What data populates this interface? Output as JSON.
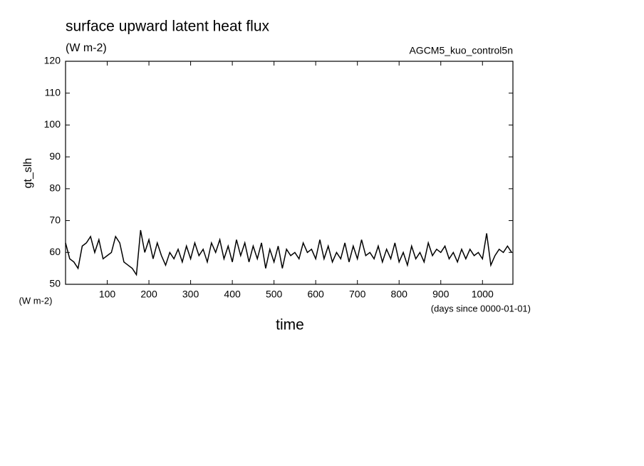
{
  "chart_data": {
    "type": "line",
    "title": "surface upward latent heat flux",
    "subtitle": "(W m-2)",
    "annotation": "AGCM5_kuo_control5n",
    "y_label": "gt_slh",
    "y_unit": "(W m-2)",
    "x_label": "time",
    "x_unit": "(days since 0000-01-01)",
    "x": [
      0,
      10,
      20,
      30,
      40,
      50,
      60,
      70,
      80,
      90,
      100,
      110,
      120,
      130,
      140,
      150,
      160,
      170,
      180,
      190,
      200,
      210,
      220,
      230,
      240,
      250,
      260,
      270,
      280,
      290,
      300,
      310,
      320,
      330,
      340,
      350,
      360,
      370,
      380,
      390,
      400,
      410,
      420,
      430,
      440,
      450,
      460,
      470,
      480,
      490,
      500,
      510,
      520,
      530,
      540,
      550,
      560,
      570,
      580,
      590,
      600,
      610,
      620,
      630,
      640,
      650,
      660,
      670,
      680,
      690,
      700,
      710,
      720,
      730,
      740,
      750,
      760,
      770,
      780,
      790,
      800,
      810,
      820,
      830,
      840,
      850,
      860,
      870,
      880,
      890,
      900,
      910,
      920,
      930,
      940,
      950,
      960,
      970,
      980,
      990,
      1000,
      1010,
      1020,
      1030,
      1040,
      1050,
      1060,
      1070
    ],
    "series": [
      {
        "name": "gt_slh",
        "color": "#000000",
        "values": [
          63,
          58,
          57,
          55,
          62,
          63,
          65,
          60,
          64,
          58,
          59,
          60,
          65,
          63,
          57,
          56,
          55,
          53,
          67,
          60,
          64,
          58,
          63,
          59,
          56,
          60,
          58,
          61,
          57,
          62,
          58,
          63,
          59,
          61,
          57,
          63,
          60,
          64,
          58,
          62,
          57,
          64,
          59,
          63,
          57,
          62,
          58,
          63,
          55,
          61,
          57,
          62,
          55,
          61,
          59,
          60,
          58,
          63,
          60,
          61,
          58,
          64,
          58,
          62,
          57,
          60,
          58,
          63,
          57,
          62,
          58,
          64,
          59,
          60,
          58,
          62,
          57,
          61,
          58,
          63,
          57,
          60,
          56,
          62,
          58,
          60,
          57,
          63,
          59,
          61,
          60,
          62,
          58,
          60,
          57,
          61,
          58,
          61,
          59,
          60,
          58,
          66,
          56,
          59,
          61,
          60,
          62,
          60
        ]
      }
    ],
    "xlim": [
      0,
      1073
    ],
    "xticks": [
      100,
      200,
      300,
      400,
      500,
      600,
      700,
      800,
      900,
      1000
    ],
    "ylim": [
      50,
      120
    ],
    "yticks": [
      50,
      60,
      70,
      80,
      90,
      100,
      110,
      120
    ]
  }
}
